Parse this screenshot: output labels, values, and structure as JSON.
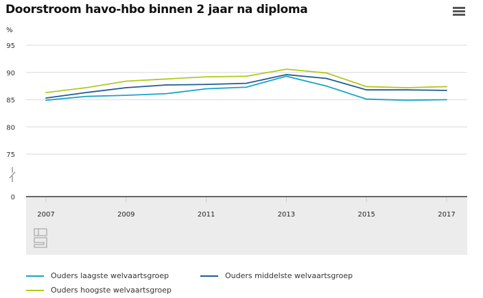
{
  "chart_data": {
    "type": "line",
    "title": "Doorstroom havo-hbo binnen 2 jaar na diploma",
    "ylabel": "%",
    "ylim": [
      75,
      95
    ],
    "yticks": [
      95,
      90,
      85,
      80,
      75
    ],
    "y_break_label": "0",
    "x": [
      2007,
      2008,
      2009,
      2010,
      2011,
      2012,
      2013,
      2014,
      2015,
      2016,
      2017
    ],
    "xticks": [
      2007,
      2009,
      2011,
      2013,
      2015,
      2017
    ],
    "series": [
      {
        "name": "Ouders laagste welvaartsgroep",
        "color": "#1aa3c8",
        "values": [
          84.9,
          85.6,
          85.8,
          86.1,
          87.0,
          87.3,
          89.3,
          87.5,
          85.1,
          84.9,
          85.0
        ]
      },
      {
        "name": "Ouders middelste welvaartsgroep",
        "color": "#1f5a96",
        "values": [
          85.3,
          86.3,
          87.2,
          87.7,
          87.8,
          88.0,
          89.6,
          88.9,
          86.8,
          86.8,
          86.7
        ]
      },
      {
        "name": "Ouders hoogste welvaartsgroep",
        "color": "#afc920",
        "values": [
          86.3,
          87.2,
          88.4,
          88.8,
          89.2,
          89.3,
          90.6,
          89.9,
          87.4,
          87.2,
          87.4
        ]
      }
    ],
    "legend_position": "bottom",
    "grid": true
  }
}
